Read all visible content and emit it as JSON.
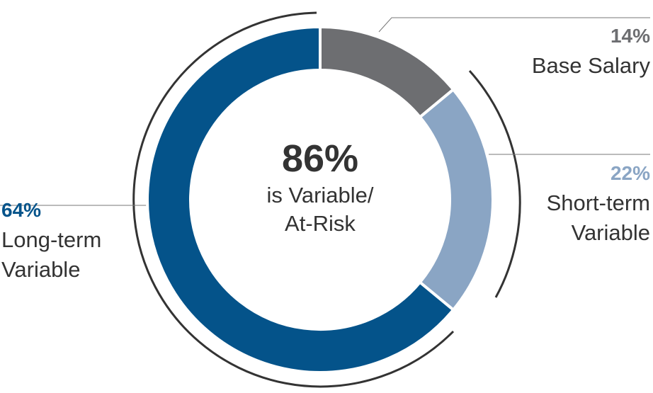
{
  "chart_data": {
    "type": "pie",
    "categories": [
      "Base Salary",
      "Short-term Variable",
      "Long-term Variable"
    ],
    "values": [
      14,
      22,
      64
    ],
    "value_labels": [
      "14%",
      "22%",
      "64%"
    ],
    "colors": [
      "#6d6e71",
      "#8aa5c4",
      "#04538a"
    ],
    "center_label": "86%",
    "center_text": "is Variable/ At-Risk"
  }
}
